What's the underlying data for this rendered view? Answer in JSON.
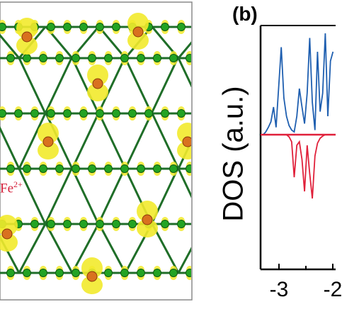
{
  "panel_a": {
    "ion_label": "Fe",
    "ion_charge": "2+",
    "colors": {
      "bond": "#1f6e28",
      "atom": "#23a323",
      "iso": "#f2ea2c",
      "ion": "#d4203a",
      "frame": "#8a8a8a"
    }
  },
  "panel_b": {
    "label": "(b)",
    "ylabel": "DOS (a.u.)",
    "tick_labels": [
      "-3",
      "-2"
    ]
  },
  "chart_data": {
    "type": "line",
    "title": "",
    "xlabel": "",
    "ylabel": "DOS (a.u.)",
    "xlim": [
      -3.4,
      -1.95
    ],
    "ylim": [
      -1.0,
      1.0
    ],
    "grid": false,
    "series": [
      {
        "color": "#1f5fb0",
        "x": [
          -3.35,
          -3.3,
          -3.25,
          -3.2,
          -3.15,
          -3.1,
          -3.05,
          -3.0,
          -2.95,
          -2.9,
          -2.85,
          -2.8,
          -2.75,
          -2.7,
          -2.65,
          -2.6,
          -2.55,
          -2.5,
          -2.45,
          -2.4,
          -2.35,
          -2.3,
          -2.25,
          -2.2,
          -2.15,
          -2.1,
          -2.05,
          -2.0
        ],
        "y": [
          0.0,
          0.03,
          0.08,
          0.14,
          0.3,
          0.08,
          0.52,
          0.95,
          0.4,
          0.2,
          0.1,
          0.05,
          0.03,
          0.2,
          0.5,
          0.3,
          0.12,
          0.45,
          1.05,
          0.35,
          0.05,
          0.9,
          0.25,
          0.45,
          1.1,
          0.2,
          0.8,
          0.9
        ]
      },
      {
        "color": "#e0203a",
        "x": [
          -3.35,
          -3.3,
          -3.25,
          -3.2,
          -3.15,
          -3.1,
          -3.05,
          -3.0,
          -2.95,
          -2.9,
          -2.85,
          -2.8,
          -2.75,
          -2.7,
          -2.65,
          -2.6,
          -2.55,
          -2.5,
          -2.45,
          -2.4,
          -2.35,
          -2.3,
          -2.25,
          -2.2,
          -2.15,
          -2.1,
          -2.05,
          -2.0
        ],
        "y": [
          0.0,
          0.0,
          0.0,
          0.0,
          0.0,
          0.0,
          0.0,
          0.0,
          0.0,
          0.0,
          -0.03,
          -0.1,
          -0.6,
          -0.15,
          -0.1,
          -0.35,
          -0.8,
          -0.15,
          -0.55,
          -0.9,
          -0.3,
          -0.12,
          -0.05,
          -0.02,
          0.0,
          0.0,
          0.0,
          0.0
        ]
      }
    ]
  }
}
